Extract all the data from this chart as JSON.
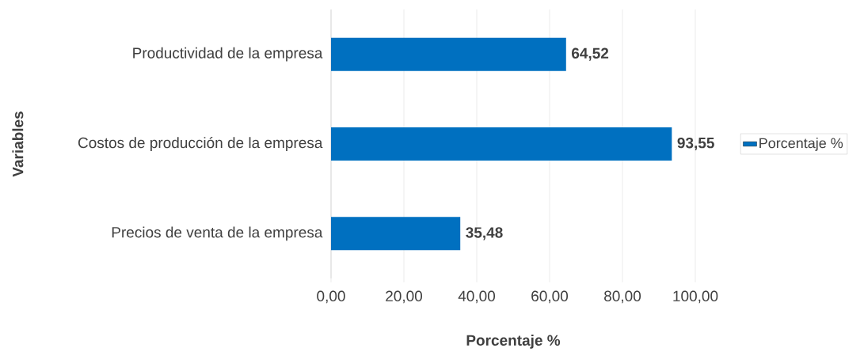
{
  "chart_data": {
    "type": "bar",
    "orientation": "horizontal",
    "xlabel": "Porcentaje %",
    "ylabel": "Variables",
    "categories": [
      "Productividad de la empresa",
      "Costos de producción de la empresa",
      "Precios de venta de la empresa"
    ],
    "series": [
      {
        "name": "Porcentaje %",
        "color": "#0070c0",
        "values": [
          64.52,
          93.55,
          35.48
        ],
        "value_labels": [
          "64,52",
          "93,55",
          "35,48"
        ]
      }
    ],
    "xlim": [
      0,
      100
    ],
    "xticks": [
      {
        "value": 0,
        "label": "0,00"
      },
      {
        "value": 20,
        "label": "20,00"
      },
      {
        "value": 40,
        "label": "40,00"
      },
      {
        "value": 60,
        "label": "60,00"
      },
      {
        "value": 80,
        "label": "80,00"
      },
      {
        "value": 100,
        "label": "100,00"
      }
    ],
    "grid": "x",
    "legend": "right"
  }
}
